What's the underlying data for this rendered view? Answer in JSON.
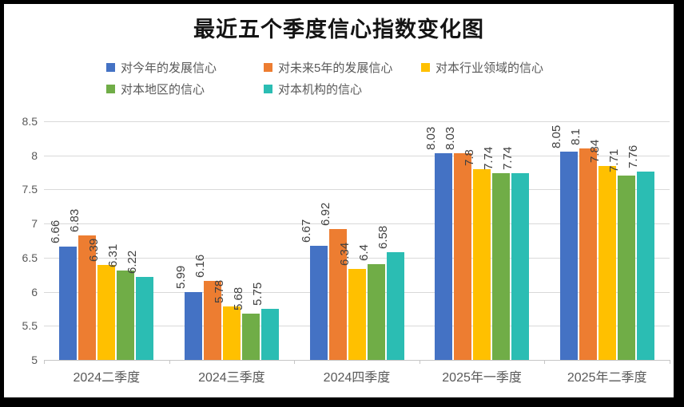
{
  "chart_data": {
    "type": "bar",
    "title": "最近五个季度信心指数变化图",
    "categories": [
      "2024二季度",
      "2024三季度",
      "2024四季度",
      "2025年一季度",
      "2025年二季度"
    ],
    "series": [
      {
        "name": "对今年的发展信心",
        "color": "#4472C4",
        "values": [
          6.66,
          5.99,
          6.67,
          8.03,
          8.05
        ]
      },
      {
        "name": "对未来5年的发展信心",
        "color": "#ED7D31",
        "values": [
          6.83,
          6.16,
          6.92,
          8.03,
          8.1
        ]
      },
      {
        "name": "对本行业领域的信心",
        "color": "#FFC000",
        "values": [
          6.39,
          5.78,
          6.34,
          7.8,
          7.84
        ]
      },
      {
        "name": "对本地区的信心",
        "color": "#70AD47",
        "values": [
          6.31,
          5.68,
          6.4,
          7.74,
          7.71
        ]
      },
      {
        "name": "对本机构的信心",
        "color": "#2BBDB3",
        "values": [
          6.22,
          5.75,
          6.58,
          7.74,
          7.76
        ]
      }
    ],
    "xlabel": "",
    "ylabel": "",
    "ylim": [
      5,
      8.5
    ],
    "ytick_step": 0.5,
    "ytick_labels": [
      "5",
      "5.5",
      "6",
      "6.5",
      "7",
      "7.5",
      "8",
      "8.5"
    ],
    "grid": true,
    "legend_position": "top",
    "data_labels": true,
    "data_label_rotation": 90
  },
  "style_colors": {
    "gridline": "#D9D9D9",
    "axis_line": "#C6C6C6",
    "tick_text": "#595959",
    "data_label_text": "#404040",
    "title_text": "#141414",
    "frame": "#000000",
    "background": "#FFFFFF"
  }
}
